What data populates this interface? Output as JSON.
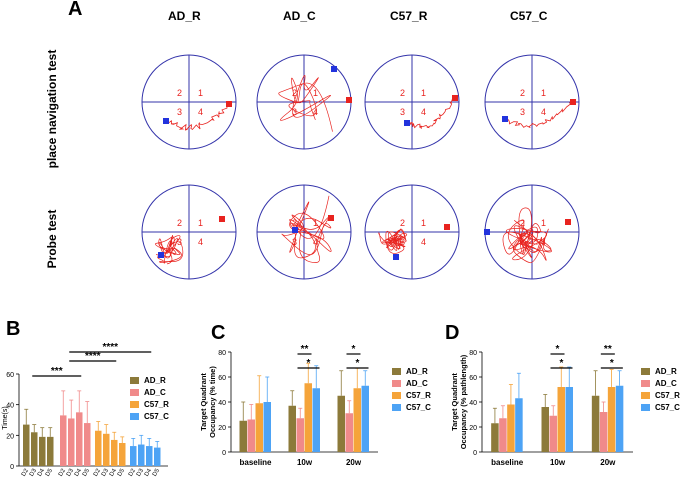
{
  "panel_labels": {
    "A": "A",
    "B": "B",
    "C": "C",
    "D": "D"
  },
  "panel_a": {
    "columns": [
      "AD_R",
      "AD_C",
      "C57_R",
      "C57_C"
    ],
    "rows": [
      "place navigation test",
      "Probe test"
    ],
    "quadrants": [
      "1",
      "2",
      "3",
      "4"
    ]
  },
  "colors": {
    "AD_R": "#8c7a3a",
    "AD_C": "#f08a8a",
    "C57_R": "#f5a43a",
    "C57_C": "#4da3f5",
    "path": "#e8231f",
    "pool": "#3333aa",
    "start": "#e8231f",
    "end": "#2233dd"
  },
  "chart_data": [
    {
      "id": "B",
      "type": "bar",
      "title": "",
      "ylabel": "Time(s)",
      "ylim": [
        0,
        60
      ],
      "yticks": [
        0,
        20,
        40,
        60
      ],
      "categories": [
        "D2",
        "D3",
        "D4",
        "D5"
      ],
      "series": [
        {
          "name": "AD_R",
          "values": [
            27,
            22,
            19,
            19
          ],
          "errors": [
            10,
            5,
            6,
            6
          ]
        },
        {
          "name": "AD_C",
          "values": [
            33,
            31,
            35,
            28
          ],
          "errors": [
            16,
            12,
            14,
            14
          ]
        },
        {
          "name": "C57_R",
          "values": [
            23,
            21,
            17,
            15
          ],
          "errors": [
            6,
            6,
            5,
            4
          ]
        },
        {
          "name": "C57_C",
          "values": [
            13,
            14,
            13,
            12
          ],
          "errors": [
            5,
            6,
            5,
            4
          ]
        }
      ],
      "legend": [
        "AD_R",
        "AD_C",
        "C57_R",
        "C57_C"
      ],
      "legend_position": "right",
      "significance": [
        {
          "label": "***",
          "from": "AD_R",
          "to": "AD_C"
        },
        {
          "label": "****",
          "from": "AD_C",
          "to": "C57_R"
        },
        {
          "label": "****",
          "from": "AD_C",
          "to": "C57_C"
        }
      ]
    },
    {
      "id": "C",
      "type": "bar",
      "title": "",
      "ylabel": "Target Quadrant Occupancy (% time)",
      "ylabel_lines": [
        "Target Quadrant",
        "Occupancy (% time)"
      ],
      "ylim": [
        0,
        80
      ],
      "yticks": [
        0,
        20,
        40,
        60,
        80
      ],
      "categories": [
        "baseline",
        "10w",
        "20w"
      ],
      "series": [
        {
          "name": "AD_R",
          "values": [
            25,
            37,
            45
          ],
          "errors": [
            15,
            12,
            20
          ]
        },
        {
          "name": "AD_C",
          "values": [
            26,
            27,
            31
          ],
          "errors": [
            12,
            8,
            10
          ]
        },
        {
          "name": "C57_R",
          "values": [
            39,
            55,
            51
          ],
          "errors": [
            22,
            16,
            16
          ]
        },
        {
          "name": "C57_C",
          "values": [
            40,
            51,
            53
          ],
          "errors": [
            20,
            18,
            12
          ]
        }
      ],
      "legend": [
        "AD_R",
        "AD_C",
        "C57_R",
        "C57_C"
      ],
      "legend_position": "right",
      "significance": [
        {
          "group": "10w",
          "label": "**",
          "from": "AD_C",
          "to": "C57_R"
        },
        {
          "group": "10w",
          "label": "*",
          "from": "AD_C",
          "to": "C57_C"
        },
        {
          "group": "20w",
          "label": "*",
          "from": "AD_C",
          "to": "C57_R"
        },
        {
          "group": "20w",
          "label": "*",
          "from": "AD_C",
          "to": "C57_C"
        }
      ]
    },
    {
      "id": "D",
      "type": "bar",
      "title": "",
      "ylabel": "Target Quadrant Occupancy (% pathlength)",
      "ylabel_lines": [
        "Target Quadrant",
        "Occupancy (% pathlength)"
      ],
      "ylim": [
        0,
        80
      ],
      "yticks": [
        0,
        20,
        40,
        60,
        80
      ],
      "categories": [
        "baseline",
        "10w",
        "20w"
      ],
      "series": [
        {
          "name": "AD_R",
          "values": [
            23,
            36,
            45
          ],
          "errors": [
            12,
            10,
            20
          ]
        },
        {
          "name": "AD_C",
          "values": [
            27,
            29,
            32
          ],
          "errors": [
            10,
            8,
            8
          ]
        },
        {
          "name": "C57_R",
          "values": [
            38,
            52,
            52
          ],
          "errors": [
            16,
            16,
            14
          ]
        },
        {
          "name": "C57_C",
          "values": [
            43,
            52,
            53
          ],
          "errors": [
            20,
            16,
            12
          ]
        }
      ],
      "legend": [
        "AD_R",
        "AD_C",
        "C57_R",
        "C57_C"
      ],
      "legend_position": "right",
      "significance": [
        {
          "group": "10w",
          "label": "*",
          "from": "AD_C",
          "to": "C57_R"
        },
        {
          "group": "10w",
          "label": "*",
          "from": "AD_C",
          "to": "C57_C"
        },
        {
          "group": "20w",
          "label": "**",
          "from": "AD_C",
          "to": "C57_R"
        },
        {
          "group": "20w",
          "label": "*",
          "from": "AD_C",
          "to": "C57_C"
        }
      ]
    }
  ]
}
